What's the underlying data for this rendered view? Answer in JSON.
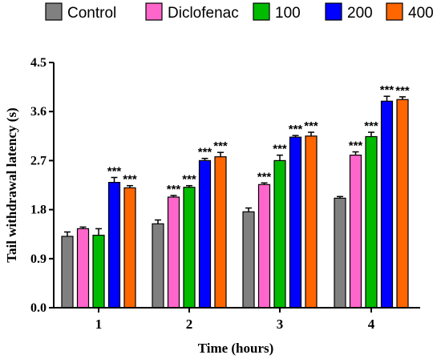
{
  "chart_data": {
    "type": "bar",
    "xlabel": "Time (hours)",
    "ylabel": "Tail withdrawal latency (s)",
    "categories": [
      "1",
      "2",
      "3",
      "4"
    ],
    "ylim": [
      0,
      4.5
    ],
    "yticks": [
      "0.0",
      "0.9",
      "1.8",
      "2.7",
      "3.6",
      "4.5"
    ],
    "legend_position": "top",
    "series": [
      {
        "name": "Control",
        "color": "#808080",
        "values": [
          1.31,
          1.54,
          1.76,
          2.01
        ],
        "errors": [
          0.08,
          0.07,
          0.07,
          0.03
        ],
        "sig": [
          "",
          "",
          "",
          ""
        ]
      },
      {
        "name": "Diclofenac",
        "color": "#ff66cc",
        "values": [
          1.45,
          2.03,
          2.26,
          2.8
        ],
        "errors": [
          0.03,
          0.03,
          0.03,
          0.06
        ],
        "sig": [
          "",
          "***",
          "***",
          "***"
        ]
      },
      {
        "name": "100",
        "color": "#00bb00",
        "values": [
          1.33,
          2.21,
          2.7,
          3.14
        ],
        "errors": [
          0.12,
          0.03,
          0.1,
          0.08
        ],
        "sig": [
          "",
          "***",
          "***",
          "***"
        ]
      },
      {
        "name": "200",
        "color": "#0000ff",
        "values": [
          2.3,
          2.7,
          3.13,
          3.79
        ],
        "errors": [
          0.09,
          0.04,
          0.03,
          0.09
        ],
        "sig": [
          "***",
          "***",
          "***",
          "***"
        ]
      },
      {
        "name": "400",
        "color": "#ff6600",
        "values": [
          2.2,
          2.77,
          3.15,
          3.82
        ],
        "errors": [
          0.04,
          0.08,
          0.07,
          0.05
        ],
        "sig": [
          "***",
          "***",
          "***",
          "***"
        ]
      }
    ]
  }
}
